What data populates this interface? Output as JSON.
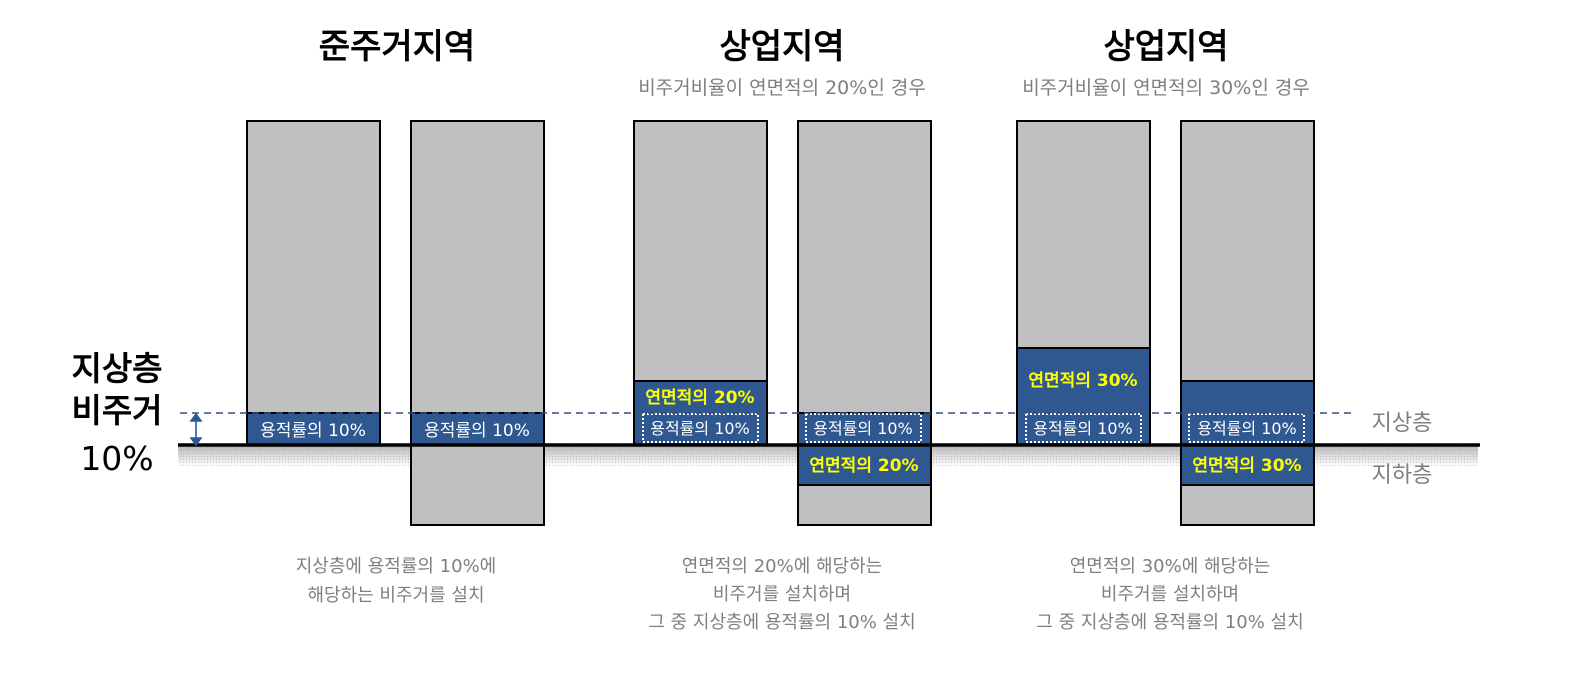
{
  "left_label": {
    "line1": "지상층",
    "line2": "비주거",
    "line3": "10%"
  },
  "level_labels": {
    "above": "지상층",
    "below": "지하층"
  },
  "zones": [
    {
      "title": "준주거지역",
      "subtitle": "",
      "buildings": [
        {
          "box_label": "용적률의 10%",
          "box_style": "solid"
        },
        {
          "box_label": "용적률의 10%",
          "box_style": "solid"
        }
      ],
      "description": [
        "지상층에 용적률의 10%에",
        "해당하는 비주거를 설치"
      ]
    },
    {
      "title": "상업지역",
      "subtitle": "비주거비율이 연면적의 20%인 경우",
      "buildings": [
        {
          "box_label": "용적률의 10%",
          "box_style": "dotted",
          "extra_label": "연면적의 20%"
        },
        {
          "box_label": "용적률의 10%",
          "box_style": "dotted",
          "extra_label": "연면적의 20%"
        }
      ],
      "description": [
        "연면적의 20%에 해당하는",
        "비주거를 설치하며",
        "그 중 지상층에 용적률의 10% 설치"
      ]
    },
    {
      "title": "상업지역",
      "subtitle": "비주거비율이 연면적의 30%인 경우",
      "buildings": [
        {
          "box_label": "용적률의 10%",
          "box_style": "dotted",
          "extra_label": "연면적의 30%"
        },
        {
          "box_label": "용적률의 10%",
          "box_style": "dotted",
          "extra_label": "연면적의 30%"
        }
      ],
      "description": [
        "연면적의 30%에 해당하는",
        "비주거를 설치하며",
        "그 중 지상층에 용적률의 10% 설치"
      ]
    }
  ],
  "colors": {
    "building_fill": "#c0c0c0",
    "nonres_fill": "#2f5891",
    "yellow_text": "#ffff00",
    "dashed_line": "#3b4f78",
    "ground": "#000000",
    "gray_text": "#7f7f7f"
  }
}
